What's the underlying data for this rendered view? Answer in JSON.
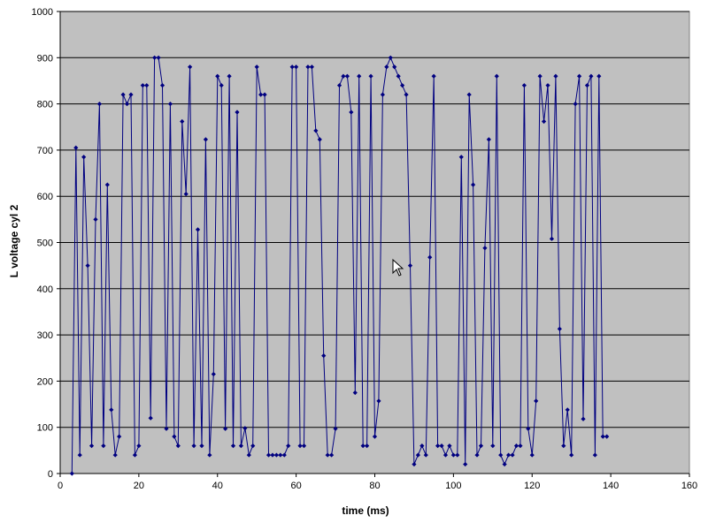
{
  "chart_data": {
    "type": "scatter",
    "style": "line-with-markers",
    "title": "",
    "xlabel": "time (ms)",
    "ylabel": "L voltage cyl 2",
    "xlim": [
      0,
      160
    ],
    "ylim": [
      0,
      1000
    ],
    "xticks": [
      0,
      20,
      40,
      60,
      80,
      100,
      120,
      140,
      160
    ],
    "yticks": [
      0,
      100,
      200,
      300,
      400,
      500,
      600,
      700,
      800,
      900,
      1000
    ],
    "grid": "horizontal",
    "legend": "none",
    "colors": {
      "plot_bg": "#c0c0c0",
      "series": "#000080",
      "grid": "#000000"
    },
    "series": [
      {
        "x": [
          3,
          4,
          5,
          6,
          7,
          8,
          9,
          10,
          11,
          12,
          13,
          14,
          15,
          16,
          17,
          18,
          19,
          20,
          21,
          22,
          23,
          24,
          25,
          26,
          27,
          28,
          29,
          30,
          31,
          32,
          33,
          34,
          35,
          36,
          37,
          38,
          39,
          40,
          41,
          42,
          43,
          44,
          45,
          46,
          47,
          48,
          49,
          50,
          51,
          52,
          53,
          54,
          55,
          56,
          57,
          58,
          59,
          60,
          61,
          62,
          63,
          64,
          65,
          66,
          67,
          68,
          69,
          70,
          71,
          72,
          73,
          74,
          75,
          76,
          77,
          78,
          79,
          80,
          81,
          82,
          83,
          84,
          85,
          86,
          87,
          88,
          89,
          90,
          91,
          92,
          93,
          94,
          95,
          96,
          97,
          98,
          99,
          100,
          101,
          102,
          103,
          104,
          105,
          106,
          107,
          108,
          109,
          110,
          111,
          112,
          113,
          114,
          115,
          116,
          117,
          118,
          119,
          120,
          121,
          122,
          123,
          124,
          125,
          126,
          127,
          128,
          129,
          130,
          131,
          132,
          133,
          134,
          135,
          136,
          137,
          138,
          139
        ],
        "y": [
          0,
          705,
          40,
          685,
          450,
          60,
          550,
          800,
          60,
          625,
          138,
          40,
          80,
          820,
          800,
          820,
          40,
          60,
          840,
          840,
          120,
          900,
          900,
          840,
          97,
          800,
          80,
          60,
          762,
          605,
          880,
          60,
          528,
          60,
          723,
          40,
          215,
          860,
          840,
          97,
          860,
          60,
          782,
          60,
          98,
          40,
          60,
          880,
          820,
          820,
          40,
          40,
          40,
          40,
          40,
          60,
          880,
          880,
          60,
          60,
          880,
          880,
          742,
          723,
          255,
          40,
          40,
          97,
          840,
          860,
          860,
          782,
          175,
          860,
          60,
          60,
          860,
          80,
          157,
          820,
          880,
          900,
          880,
          860,
          840,
          820,
          450,
          20,
          40,
          60,
          40,
          468,
          860,
          60,
          60,
          40,
          60,
          40,
          40,
          685,
          20,
          820,
          625,
          40,
          60,
          488,
          723,
          60,
          860,
          40,
          20,
          40,
          40,
          60,
          60,
          840,
          97,
          40,
          157,
          860,
          762,
          840,
          508,
          860,
          313,
          60,
          138,
          40,
          800,
          860,
          118,
          840,
          860,
          40,
          860,
          80,
          80
        ]
      }
    ]
  }
}
